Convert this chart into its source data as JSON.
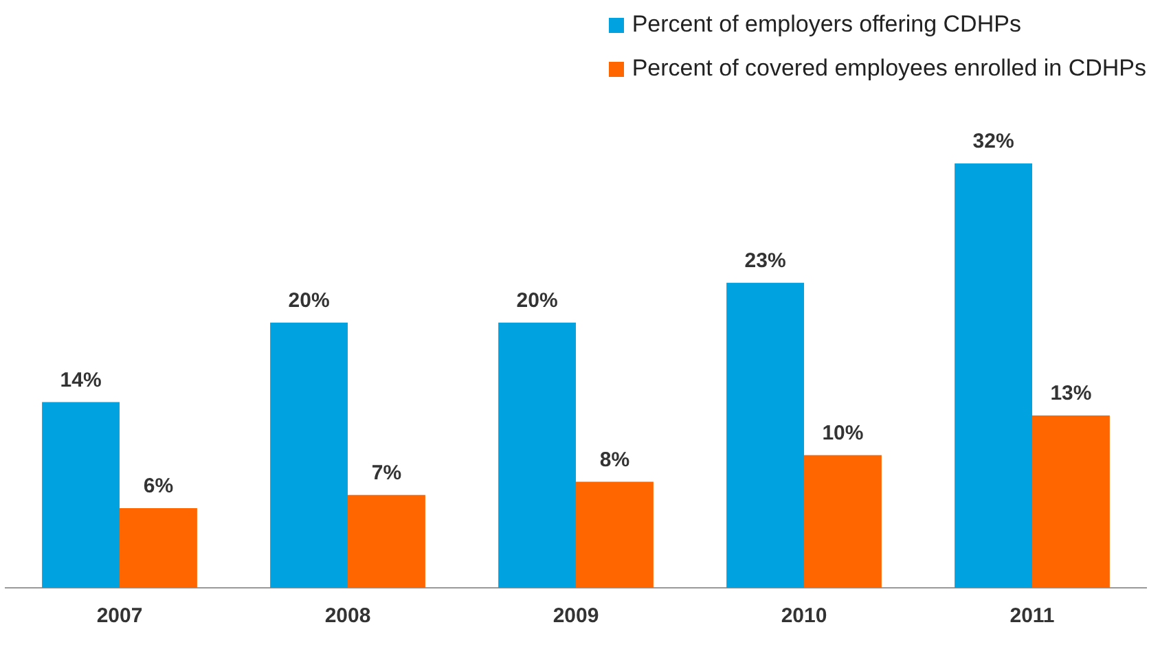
{
  "chart_data": {
    "type": "bar",
    "categories": [
      "2007",
      "2008",
      "2009",
      "2010",
      "2011"
    ],
    "series": [
      {
        "name": "Percent of employers offering CDHPs",
        "color": "#00a2df",
        "values": [
          14,
          20,
          20,
          23,
          32
        ],
        "value_labels": [
          "14%",
          "20%",
          "20%",
          "23%",
          "32%"
        ]
      },
      {
        "name": "Percent of covered employees enrolled in CDHPs",
        "color": "#ff6600",
        "values": [
          6,
          7,
          8,
          10,
          13
        ],
        "value_labels": [
          "6%",
          "7%",
          "8%",
          "10%",
          "13%"
        ]
      }
    ],
    "legend": "top right",
    "grid": false,
    "tick_labels": "x"
  }
}
